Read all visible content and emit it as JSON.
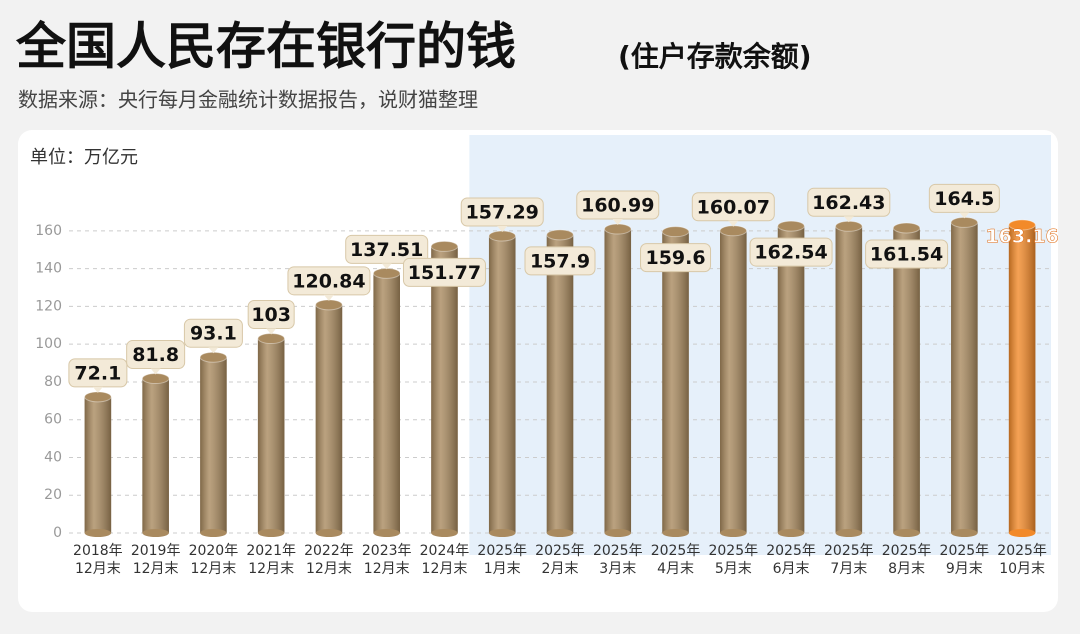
{
  "chart_data": {
    "type": "bar",
    "title": "全国人民存在银行的钱",
    "title_note": "(住户存款余额)",
    "subtitle": "数据来源：央行每月金融统计数据报告，说财猫整理",
    "unit": "单位：万亿元",
    "categories": [
      [
        "2018年",
        "12月末"
      ],
      [
        "2019年",
        "12月末"
      ],
      [
        "2020年",
        "12月末"
      ],
      [
        "2021年",
        "12月末"
      ],
      [
        "2022年",
        "12月末"
      ],
      [
        "2023年",
        "12月末"
      ],
      [
        "2024年",
        "12月末"
      ],
      [
        "2025年",
        "1月末"
      ],
      [
        "2025年",
        "2月末"
      ],
      [
        "2025年",
        "3月末"
      ],
      [
        "2025年",
        "4月末"
      ],
      [
        "2025年",
        "5月末"
      ],
      [
        "2025年",
        "6月末"
      ],
      [
        "2025年",
        "7月末"
      ],
      [
        "2025年",
        "8月末"
      ],
      [
        "2025年",
        "9月末"
      ],
      [
        "2025年",
        "10月末"
      ]
    ],
    "values": [
      72.1,
      81.8,
      93.1,
      103,
      120.84,
      137.51,
      151.77,
      157.29,
      157.9,
      160.99,
      159.6,
      160.07,
      162.54,
      162.43,
      161.54,
      164.5,
      163.16
    ],
    "colors": [
      "#a98a5f",
      "#a98a5f",
      "#a98a5f",
      "#a98a5f",
      "#a98a5f",
      "#a98a5f",
      "#a98a5f",
      "#a98a5f",
      "#a98a5f",
      "#a98a5f",
      "#a98a5f",
      "#a98a5f",
      "#a98a5f",
      "#a98a5f",
      "#a98a5f",
      "#a98a5f",
      "#f28a2a"
    ],
    "ylim": [
      0,
      170
    ],
    "yticks": [
      0,
      20,
      40,
      60,
      80,
      100,
      120,
      140,
      160
    ],
    "grid": true
  }
}
